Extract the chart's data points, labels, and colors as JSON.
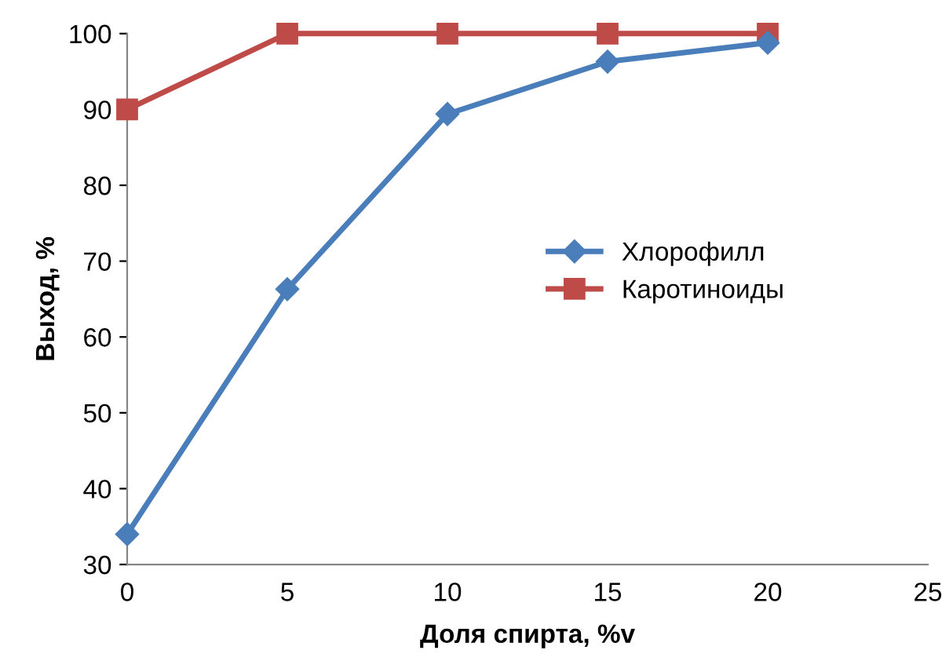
{
  "chart_data": {
    "type": "line",
    "xlabel": "Доля спирта, %v",
    "ylabel": "Выход, %",
    "x": [
      0,
      5,
      10,
      15,
      20
    ],
    "series": [
      {
        "name": "Хлорофилл",
        "color": "#4a7ebb",
        "marker": "diamond",
        "values": [
          34,
          66.3,
          89.4,
          96.3,
          98.8
        ]
      },
      {
        "name": "Каротиноиды",
        "color": "#be4b48",
        "marker": "square",
        "values": [
          90,
          100,
          100,
          100,
          100
        ]
      }
    ],
    "xlim": [
      0,
      25
    ],
    "xticks": [
      0,
      5,
      10,
      15,
      20,
      25
    ],
    "ylim": [
      30,
      100
    ],
    "yticks": [
      30,
      40,
      50,
      60,
      70,
      80,
      90,
      100
    ],
    "grid": false,
    "legend": "right",
    "line_style": "solid"
  }
}
